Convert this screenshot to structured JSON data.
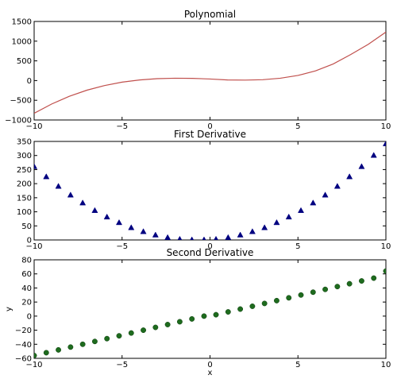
{
  "chart_data": [
    {
      "type": "line",
      "title": "Polynomial",
      "xlabel": "",
      "ylabel": "",
      "xlim": [
        -10,
        10
      ],
      "ylim": [
        -1000,
        1500
      ],
      "xticks": [
        -10,
        -5,
        0,
        5,
        10
      ],
      "yticks": [
        -1000,
        -500,
        0,
        500,
        1000,
        1500
      ],
      "grid": false,
      "series": [
        {
          "color": "#c0504d",
          "x": [
            -10,
            -9,
            -8,
            -7,
            -6,
            -5,
            -4,
            -3,
            -2,
            -1,
            0,
            1,
            2,
            3,
            4,
            5,
            6,
            7,
            8,
            9,
            10
          ],
          "y": [
            -830,
            -594,
            -400,
            -244,
            -126,
            -40,
            16,
            48,
            60,
            56,
            40,
            16,
            12,
            22,
            60,
            130,
            246,
            420,
            660,
            920,
            1230
          ]
        }
      ]
    },
    {
      "type": "scatter",
      "title": "First Derivative",
      "xlabel": "",
      "ylabel": "",
      "xlim": [
        -10,
        10
      ],
      "ylim": [
        0,
        350
      ],
      "xticks": [
        -10,
        -5,
        0,
        5,
        10
      ],
      "yticks": [
        0,
        50,
        100,
        150,
        200,
        250,
        300,
        350
      ],
      "grid": false,
      "series": [
        {
          "marker": "triangle",
          "color": "#000080",
          "x": [
            -10,
            -9.31,
            -8.62,
            -7.93,
            -7.24,
            -6.55,
            -5.86,
            -5.17,
            -4.48,
            -3.79,
            -3.1,
            -2.41,
            -1.72,
            -1.03,
            -0.34,
            0.34,
            1.03,
            1.72,
            2.41,
            3.1,
            3.79,
            4.48,
            5.17,
            5.86,
            6.55,
            7.24,
            7.93,
            8.62,
            9.31,
            10
          ],
          "y": [
            261,
            225,
            191,
            160,
            132,
            105,
            82,
            62,
            44,
            30,
            18,
            9,
            3,
            1,
            1,
            3,
            9,
            18,
            30,
            44,
            62,
            82,
            105,
            132,
            160,
            191,
            225,
            261,
            301,
            342
          ]
        }
      ]
    },
    {
      "type": "scatter",
      "title": "Second Derivative",
      "xlabel": "x",
      "ylabel": "y",
      "xlim": [
        -10,
        10
      ],
      "ylim": [
        -60,
        80
      ],
      "xticks": [
        -10,
        -5,
        0,
        5,
        10
      ],
      "yticks": [
        -60,
        -40,
        -20,
        0,
        20,
        40,
        60,
        80
      ],
      "grid": false,
      "series": [
        {
          "marker": "circle",
          "color": "#1e6b1e",
          "x": [
            -10,
            -9.31,
            -8.62,
            -7.93,
            -7.24,
            -6.55,
            -5.86,
            -5.17,
            -4.48,
            -3.79,
            -3.1,
            -2.41,
            -1.72,
            -1.03,
            -0.34,
            0.34,
            1.03,
            1.72,
            2.41,
            3.1,
            3.79,
            4.48,
            5.17,
            5.86,
            6.55,
            7.24,
            7.93,
            8.62,
            9.31,
            10
          ],
          "y": [
            -56,
            -52,
            -48,
            -44,
            -40,
            -36,
            -32,
            -28,
            -24,
            -20,
            -16,
            -12,
            -8,
            -4,
            0,
            2,
            6,
            10,
            14,
            18,
            22,
            26,
            30,
            34,
            38,
            42,
            46,
            50,
            54,
            64
          ]
        }
      ]
    }
  ]
}
